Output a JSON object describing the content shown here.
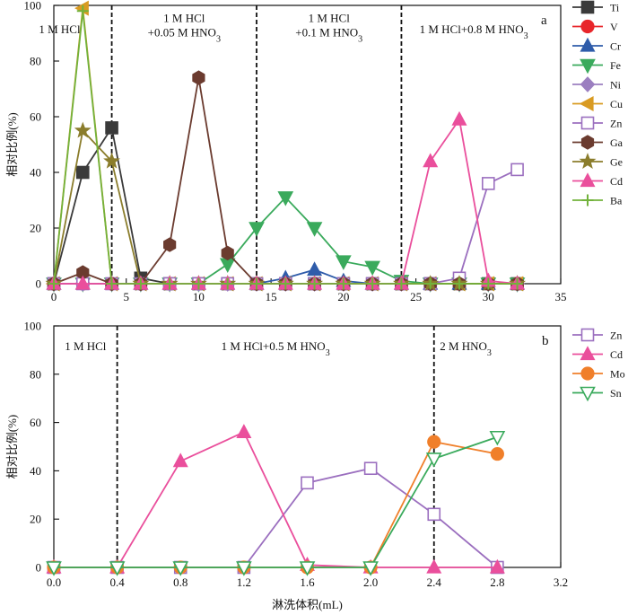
{
  "chart_data": [
    {
      "type": "line",
      "panel_label": "a",
      "xlabel": "",
      "ylabel": "相对比例(%)",
      "xlim": [
        0,
        35
      ],
      "ylim": [
        0,
        100
      ],
      "x_ticks": [
        0,
        5,
        10,
        15,
        20,
        25,
        30,
        35
      ],
      "y_ticks": [
        0,
        20,
        40,
        60,
        80,
        100
      ],
      "x_tick_labels": [
        "0",
        "5",
        "10",
        "15",
        "20",
        "25",
        "30",
        "35"
      ],
      "y_tick_labels": [
        "0",
        "20",
        "40",
        "60",
        "80",
        "100"
      ],
      "dividers": [
        4,
        14,
        24
      ],
      "region_labels": [
        {
          "lines": [
            "1 M HCl"
          ],
          "x": 0.4,
          "y": 90
        },
        {
          "lines": [
            "1 M HCl",
            "+0.05 M HNO3"
          ],
          "x": 9,
          "y": 94
        },
        {
          "lines": [
            "1 M HCl",
            "+0.1 M HNO3"
          ],
          "x": 19,
          "y": 94
        },
        {
          "lines": [
            "1 M HCl+0.8 M HNO3"
          ],
          "x": 29,
          "y": 90
        }
      ],
      "legend_position": "right",
      "grid": false,
      "series": [
        {
          "name": "Ti",
          "color": "#3a3a3a",
          "marker": "square-filled",
          "x": [
            0,
            2,
            4,
            6,
            8,
            10,
            12,
            14,
            16,
            18,
            20,
            22,
            24,
            26,
            28,
            30,
            32
          ],
          "y": [
            0,
            40,
            56,
            2,
            0,
            0,
            0,
            0,
            0,
            0,
            0,
            0,
            0,
            0,
            0,
            0,
            0
          ]
        },
        {
          "name": "V",
          "color": "#e8262b",
          "marker": "circle-filled",
          "x": [
            0,
            2,
            4,
            6,
            8,
            10,
            12,
            14,
            16,
            18,
            20,
            22,
            24,
            26,
            28,
            30,
            32
          ],
          "y": [
            0,
            0,
            0,
            0,
            0,
            0,
            0,
            0,
            0,
            0,
            0,
            0,
            0,
            0,
            0,
            0,
            0
          ]
        },
        {
          "name": "Cr",
          "color": "#2f5caa",
          "marker": "triangle-up-filled",
          "x": [
            0,
            2,
            4,
            6,
            8,
            10,
            12,
            14,
            16,
            18,
            20,
            22,
            24,
            26,
            28,
            30,
            32
          ],
          "y": [
            0,
            0,
            0,
            0,
            0,
            0,
            0,
            0,
            2,
            5,
            1,
            0,
            0,
            0,
            0,
            0,
            0
          ]
        },
        {
          "name": "Fe",
          "color": "#3aaa5c",
          "marker": "triangle-down-filled",
          "x": [
            0,
            2,
            4,
            6,
            8,
            10,
            12,
            14,
            16,
            18,
            20,
            22,
            24,
            26,
            28,
            30,
            32
          ],
          "y": [
            0,
            0,
            0,
            0,
            0,
            0,
            7,
            20,
            31,
            20,
            8,
            6,
            1,
            0,
            0,
            0,
            0
          ]
        },
        {
          "name": "Ni",
          "color": "#9b7fc0",
          "marker": "diamond-filled",
          "x": [
            0,
            2,
            4,
            6,
            8,
            10,
            12,
            14,
            16,
            18,
            20,
            22,
            24,
            26,
            28,
            30,
            32
          ],
          "y": [
            0,
            0,
            0,
            0,
            0,
            0,
            0,
            0,
            0,
            0,
            0,
            0,
            0,
            0,
            0,
            0,
            0
          ]
        },
        {
          "name": "Cu",
          "color": "#d99b22",
          "marker": "triangle-left-filled",
          "x": [
            0,
            2,
            4,
            6,
            8,
            10,
            12,
            14,
            16,
            18,
            20,
            22,
            24,
            26,
            28,
            30,
            32
          ],
          "y": [
            0,
            99,
            0,
            0,
            0,
            0,
            0,
            0,
            0,
            0,
            0,
            0,
            0,
            0,
            0,
            0,
            0
          ]
        },
        {
          "name": "Zn",
          "color": "#9b6fbf",
          "marker": "square-open",
          "x": [
            0,
            2,
            4,
            6,
            8,
            10,
            12,
            14,
            16,
            18,
            20,
            22,
            24,
            26,
            28,
            30,
            32
          ],
          "y": [
            0,
            0,
            0,
            0,
            0,
            0,
            0,
            0,
            0,
            0,
            0,
            0,
            0,
            0,
            2,
            36,
            41
          ]
        },
        {
          "name": "Ga",
          "color": "#6b3b2f",
          "marker": "hexagon-filled",
          "x": [
            0,
            2,
            4,
            6,
            8,
            10,
            12,
            14,
            16,
            18,
            20,
            22,
            24,
            26,
            28,
            30,
            32
          ],
          "y": [
            0,
            4,
            0,
            0,
            14,
            74,
            11,
            0,
            0,
            0,
            0,
            0,
            0,
            0,
            0,
            0,
            0
          ]
        },
        {
          "name": "Ge",
          "color": "#8b7d2c",
          "marker": "star-filled",
          "x": [
            0,
            2,
            4,
            6,
            8,
            10,
            12,
            14,
            16,
            18,
            20,
            22,
            24,
            26,
            28,
            30,
            32
          ],
          "y": [
            0,
            55,
            44,
            0,
            0,
            0,
            0,
            0,
            0,
            0,
            0,
            0,
            0,
            0,
            0,
            0,
            0
          ]
        },
        {
          "name": "Cd",
          "color": "#ea4f9c",
          "marker": "triangle-up-filled",
          "x": [
            0,
            2,
            4,
            6,
            8,
            10,
            12,
            14,
            16,
            18,
            20,
            22,
            24,
            26,
            28,
            30,
            32
          ],
          "y": [
            0,
            0,
            0,
            0,
            0,
            0,
            0,
            0,
            0,
            0,
            0,
            0,
            0,
            44,
            59,
            1,
            0
          ]
        },
        {
          "name": "Ba",
          "color": "#72b23b",
          "marker": "plus",
          "x": [
            0,
            2,
            4,
            6,
            8,
            10,
            12,
            14,
            16,
            18,
            20,
            22,
            24,
            26,
            28,
            30,
            32
          ],
          "y": [
            0,
            98,
            0,
            0,
            0,
            0,
            0,
            0,
            0,
            0,
            0,
            0,
            0,
            0,
            0,
            0,
            0
          ]
        }
      ]
    },
    {
      "type": "line",
      "panel_label": "b",
      "xlabel": "淋洗体积(mL)",
      "ylabel": "相对比例(%)",
      "xlim": [
        0,
        3.2
      ],
      "ylim": [
        0,
        100
      ],
      "x_ticks": [
        0,
        0.4,
        0.8,
        1.2,
        1.6,
        2.0,
        2.4,
        2.8,
        3.2
      ],
      "y_ticks": [
        0,
        20,
        40,
        60,
        80,
        100
      ],
      "x_tick_labels": [
        "0.0",
        "0.4",
        "0.8",
        "1.2",
        "1.6",
        "2.0",
        "2.4",
        "2.8",
        "3.2"
      ],
      "y_tick_labels": [
        "0",
        "20",
        "40",
        "60",
        "80",
        "100"
      ],
      "dividers": [
        0.4,
        2.4
      ],
      "region_labels": [
        {
          "lines": [
            "1 M HCl"
          ],
          "x": 0.2,
          "y": 90
        },
        {
          "lines": [
            "1 M HCl+0.5 M HNO3"
          ],
          "x": 1.4,
          "y": 90
        },
        {
          "lines": [
            "2 M HNO3"
          ],
          "x": 2.6,
          "y": 90
        }
      ],
      "legend_position": "right",
      "grid": false,
      "series": [
        {
          "name": "Zn",
          "color": "#9b6fbf",
          "marker": "square-open",
          "x": [
            0,
            0.4,
            0.8,
            1.2,
            1.6,
            2.0,
            2.4,
            2.8
          ],
          "y": [
            0,
            0,
            0,
            0,
            35,
            41,
            22,
            0
          ]
        },
        {
          "name": "Cd",
          "color": "#ea4f9c",
          "marker": "triangle-up-filled",
          "x": [
            0,
            0.4,
            0.8,
            1.2,
            1.6,
            2.0,
            2.4,
            2.8
          ],
          "y": [
            0,
            0,
            44,
            56,
            1,
            0,
            0,
            0
          ]
        },
        {
          "name": "Mo",
          "color": "#f07f2a",
          "marker": "circle-filled",
          "x": [
            0,
            0.4,
            0.8,
            1.2,
            1.6,
            2.0,
            2.4,
            2.8
          ],
          "y": [
            0,
            0,
            0,
            0,
            0,
            0,
            52,
            47
          ]
        },
        {
          "name": "Sn",
          "color": "#3aaa5c",
          "marker": "triangle-down-open",
          "x": [
            0,
            0.4,
            0.8,
            1.2,
            1.6,
            2.0,
            2.4,
            2.8
          ],
          "y": [
            0,
            0,
            0,
            0,
            0,
            0,
            45,
            54
          ]
        }
      ]
    }
  ]
}
